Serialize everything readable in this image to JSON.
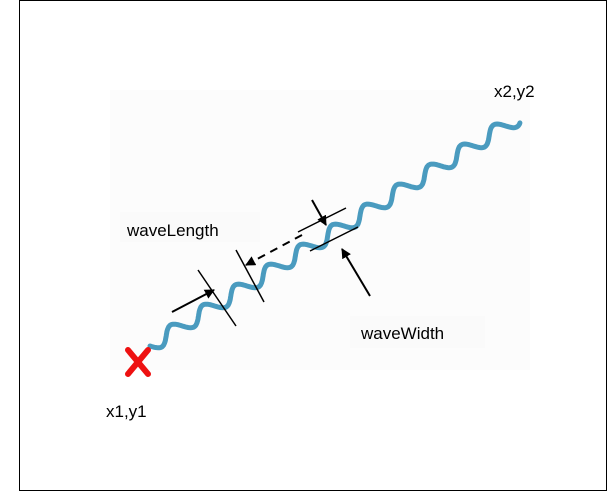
{
  "labels": {
    "start_point": "x1,y1",
    "end_point": "x2,y2",
    "wave_length": "waveLength",
    "wave_width": "waveWidth"
  },
  "colors": {
    "frame_border": "#000000",
    "wave": "#4a9bbf",
    "start_marker": "#ee1111",
    "annotation": "#000000",
    "label_background": "#fafafa"
  },
  "icons": {
    "start_marker": "x-mark-icon"
  }
}
